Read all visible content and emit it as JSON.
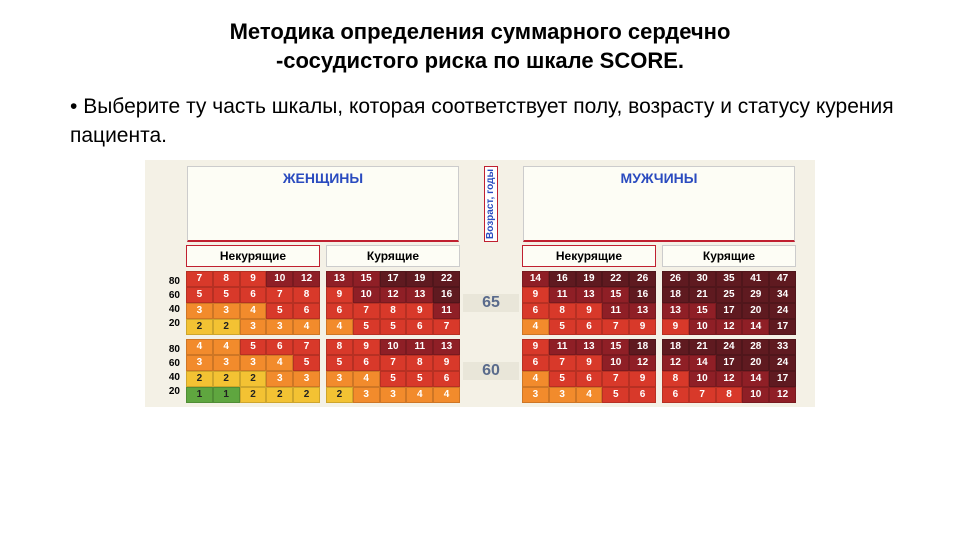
{
  "title_line1": "Методика определения суммарного сердечно",
  "title_line2": "-сосудистого риска по шкале SCORE.",
  "bullet": "Выберите ту часть шкалы, которая соответствует полу, возрасту и статусу курения пациента.",
  "header_women": "ЖЕНЩИНЫ",
  "header_men": "МУЖЧИНЫ",
  "header_age": "Возраст, годы",
  "smoke_no": "Некурящие",
  "smoke_yes": "Курящие",
  "y_labels": [
    "80",
    "60",
    "40",
    "20"
  ],
  "ages": [
    "65",
    "60"
  ],
  "colors": {
    "green": "#5fa63f",
    "yellow": "#f3c233",
    "orange": "#f28b2c",
    "red": "#d8392a",
    "darkred": "#8f1f26",
    "brown": "#5f1a20"
  },
  "blocks": {
    "age65": {
      "w_ns": [
        {
          "v": 7,
          "c": "red"
        },
        {
          "v": 8,
          "c": "red"
        },
        {
          "v": 9,
          "c": "red"
        },
        {
          "v": 10,
          "c": "darkred"
        },
        {
          "v": 12,
          "c": "darkred"
        },
        {
          "v": 5,
          "c": "red"
        },
        {
          "v": 5,
          "c": "red"
        },
        {
          "v": 6,
          "c": "red"
        },
        {
          "v": 7,
          "c": "red"
        },
        {
          "v": 8,
          "c": "red"
        },
        {
          "v": 3,
          "c": "orange"
        },
        {
          "v": 3,
          "c": "orange"
        },
        {
          "v": 4,
          "c": "orange"
        },
        {
          "v": 5,
          "c": "red"
        },
        {
          "v": 6,
          "c": "red"
        },
        {
          "v": 2,
          "c": "yellow"
        },
        {
          "v": 2,
          "c": "yellow"
        },
        {
          "v": 3,
          "c": "orange"
        },
        {
          "v": 3,
          "c": "orange"
        },
        {
          "v": 4,
          "c": "orange"
        }
      ],
      "w_s": [
        {
          "v": 13,
          "c": "darkred"
        },
        {
          "v": 15,
          "c": "darkred"
        },
        {
          "v": 17,
          "c": "brown"
        },
        {
          "v": 19,
          "c": "brown"
        },
        {
          "v": 22,
          "c": "brown"
        },
        {
          "v": 9,
          "c": "red"
        },
        {
          "v": 10,
          "c": "darkred"
        },
        {
          "v": 12,
          "c": "darkred"
        },
        {
          "v": 13,
          "c": "darkred"
        },
        {
          "v": 16,
          "c": "brown"
        },
        {
          "v": 6,
          "c": "red"
        },
        {
          "v": 7,
          "c": "red"
        },
        {
          "v": 8,
          "c": "red"
        },
        {
          "v": 9,
          "c": "red"
        },
        {
          "v": 11,
          "c": "darkred"
        },
        {
          "v": 4,
          "c": "orange"
        },
        {
          "v": 5,
          "c": "red"
        },
        {
          "v": 5,
          "c": "red"
        },
        {
          "v": 6,
          "c": "red"
        },
        {
          "v": 7,
          "c": "red"
        }
      ],
      "m_ns": [
        {
          "v": 14,
          "c": "darkred"
        },
        {
          "v": 16,
          "c": "brown"
        },
        {
          "v": 19,
          "c": "brown"
        },
        {
          "v": 22,
          "c": "brown"
        },
        {
          "v": 26,
          "c": "brown"
        },
        {
          "v": 9,
          "c": "red"
        },
        {
          "v": 11,
          "c": "darkred"
        },
        {
          "v": 13,
          "c": "darkred"
        },
        {
          "v": 15,
          "c": "darkred"
        },
        {
          "v": 16,
          "c": "brown"
        },
        {
          "v": 6,
          "c": "red"
        },
        {
          "v": 8,
          "c": "red"
        },
        {
          "v": 9,
          "c": "red"
        },
        {
          "v": 11,
          "c": "darkred"
        },
        {
          "v": 13,
          "c": "darkred"
        },
        {
          "v": 4,
          "c": "orange"
        },
        {
          "v": 5,
          "c": "red"
        },
        {
          "v": 6,
          "c": "red"
        },
        {
          "v": 7,
          "c": "red"
        },
        {
          "v": 9,
          "c": "red"
        }
      ],
      "m_s": [
        {
          "v": 26,
          "c": "brown"
        },
        {
          "v": 30,
          "c": "brown"
        },
        {
          "v": 35,
          "c": "brown"
        },
        {
          "v": 41,
          "c": "brown"
        },
        {
          "v": 47,
          "c": "brown"
        },
        {
          "v": 18,
          "c": "brown"
        },
        {
          "v": 21,
          "c": "brown"
        },
        {
          "v": 25,
          "c": "brown"
        },
        {
          "v": 29,
          "c": "brown"
        },
        {
          "v": 34,
          "c": "brown"
        },
        {
          "v": 13,
          "c": "darkred"
        },
        {
          "v": 15,
          "c": "darkred"
        },
        {
          "v": 17,
          "c": "brown"
        },
        {
          "v": 20,
          "c": "brown"
        },
        {
          "v": 24,
          "c": "brown"
        },
        {
          "v": 9,
          "c": "red"
        },
        {
          "v": 10,
          "c": "darkred"
        },
        {
          "v": 12,
          "c": "darkred"
        },
        {
          "v": 14,
          "c": "darkred"
        },
        {
          "v": 17,
          "c": "brown"
        }
      ]
    },
    "age60": {
      "w_ns": [
        {
          "v": 4,
          "c": "orange"
        },
        {
          "v": 4,
          "c": "orange"
        },
        {
          "v": 5,
          "c": "red"
        },
        {
          "v": 6,
          "c": "red"
        },
        {
          "v": 7,
          "c": "red"
        },
        {
          "v": 3,
          "c": "orange"
        },
        {
          "v": 3,
          "c": "orange"
        },
        {
          "v": 3,
          "c": "orange"
        },
        {
          "v": 4,
          "c": "orange"
        },
        {
          "v": 5,
          "c": "red"
        },
        {
          "v": 2,
          "c": "yellow"
        },
        {
          "v": 2,
          "c": "yellow"
        },
        {
          "v": 2,
          "c": "yellow"
        },
        {
          "v": 3,
          "c": "orange"
        },
        {
          "v": 3,
          "c": "orange"
        },
        {
          "v": 1,
          "c": "green"
        },
        {
          "v": 1,
          "c": "green"
        },
        {
          "v": 2,
          "c": "yellow"
        },
        {
          "v": 2,
          "c": "yellow"
        },
        {
          "v": 2,
          "c": "yellow"
        }
      ],
      "w_s": [
        {
          "v": 8,
          "c": "red"
        },
        {
          "v": 9,
          "c": "red"
        },
        {
          "v": 10,
          "c": "darkred"
        },
        {
          "v": 11,
          "c": "darkred"
        },
        {
          "v": 13,
          "c": "darkred"
        },
        {
          "v": 5,
          "c": "red"
        },
        {
          "v": 6,
          "c": "red"
        },
        {
          "v": 7,
          "c": "red"
        },
        {
          "v": 8,
          "c": "red"
        },
        {
          "v": 9,
          "c": "red"
        },
        {
          "v": 3,
          "c": "orange"
        },
        {
          "v": 4,
          "c": "orange"
        },
        {
          "v": 5,
          "c": "red"
        },
        {
          "v": 5,
          "c": "red"
        },
        {
          "v": 6,
          "c": "red"
        },
        {
          "v": 2,
          "c": "yellow"
        },
        {
          "v": 3,
          "c": "orange"
        },
        {
          "v": 3,
          "c": "orange"
        },
        {
          "v": 4,
          "c": "orange"
        },
        {
          "v": 4,
          "c": "orange"
        }
      ],
      "m_ns": [
        {
          "v": 9,
          "c": "red"
        },
        {
          "v": 11,
          "c": "darkred"
        },
        {
          "v": 13,
          "c": "darkred"
        },
        {
          "v": 15,
          "c": "darkred"
        },
        {
          "v": 18,
          "c": "brown"
        },
        {
          "v": 6,
          "c": "red"
        },
        {
          "v": 7,
          "c": "red"
        },
        {
          "v": 9,
          "c": "red"
        },
        {
          "v": 10,
          "c": "darkred"
        },
        {
          "v": 12,
          "c": "darkred"
        },
        {
          "v": 4,
          "c": "orange"
        },
        {
          "v": 5,
          "c": "red"
        },
        {
          "v": 6,
          "c": "red"
        },
        {
          "v": 7,
          "c": "red"
        },
        {
          "v": 9,
          "c": "red"
        },
        {
          "v": 3,
          "c": "orange"
        },
        {
          "v": 3,
          "c": "orange"
        },
        {
          "v": 4,
          "c": "orange"
        },
        {
          "v": 5,
          "c": "red"
        },
        {
          "v": 6,
          "c": "red"
        }
      ],
      "m_s": [
        {
          "v": 18,
          "c": "brown"
        },
        {
          "v": 21,
          "c": "brown"
        },
        {
          "v": 24,
          "c": "brown"
        },
        {
          "v": 28,
          "c": "brown"
        },
        {
          "v": 33,
          "c": "brown"
        },
        {
          "v": 12,
          "c": "darkred"
        },
        {
          "v": 14,
          "c": "darkred"
        },
        {
          "v": 17,
          "c": "brown"
        },
        {
          "v": 20,
          "c": "brown"
        },
        {
          "v": 24,
          "c": "brown"
        },
        {
          "v": 8,
          "c": "red"
        },
        {
          "v": 10,
          "c": "darkred"
        },
        {
          "v": 12,
          "c": "darkred"
        },
        {
          "v": 14,
          "c": "darkred"
        },
        {
          "v": 17,
          "c": "brown"
        },
        {
          "v": 6,
          "c": "red"
        },
        {
          "v": 7,
          "c": "red"
        },
        {
          "v": 8,
          "c": "red"
        },
        {
          "v": 10,
          "c": "darkred"
        },
        {
          "v": 12,
          "c": "darkred"
        }
      ]
    }
  }
}
